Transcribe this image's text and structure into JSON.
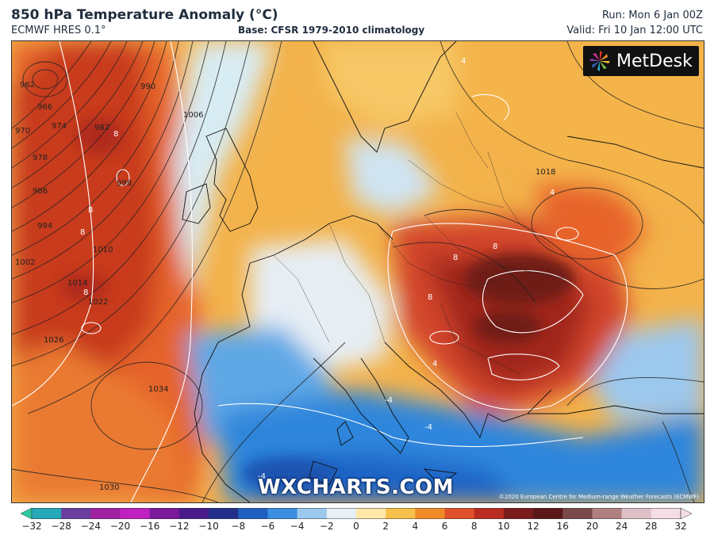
{
  "header": {
    "title": "850 hPa Temperature Anomaly (°C)",
    "model": "ECMWF HRES 0.1°",
    "base": "Base: CFSR 1979-2010 climatology",
    "run": "Run: Mon 6 Jan 00Z",
    "valid": "Valid: Fri 10 Jan 12:00 UTC"
  },
  "logo": {
    "text": "MetDesk"
  },
  "watermark": "WXCHARTS.COM",
  "copyright": "©2020 European Centre for Medium-range Weather Forecasts (ECMWF)",
  "colorbar": {
    "ticks": [
      "-32",
      "-28",
      "-24",
      "-20",
      "-16",
      "-12",
      "-10",
      "-8",
      "-6",
      "-4",
      "-2",
      "0",
      "2",
      "4",
      "6",
      "8",
      "10",
      "12",
      "16",
      "20",
      "24",
      "28",
      "32"
    ],
    "colors": [
      "#2ec8a0",
      "#25a8b8",
      "#6a3fa0",
      "#a020a0",
      "#c020c0",
      "#7a1a9a",
      "#4a1a8a",
      "#22308a",
      "#1f5fc0",
      "#3b8fe0",
      "#9cc8ee",
      "#e8f0f6",
      "#fde8a8",
      "#f7c04a",
      "#f08a28",
      "#e0502a",
      "#b82c22",
      "#7a1c1c",
      "#5a1818",
      "#7a4a4a",
      "#b08080",
      "#e0c0c8",
      "#f4dde6"
    ]
  },
  "pressure_labels": [
    {
      "text": "962"
    },
    {
      "text": "966"
    },
    {
      "text": "970"
    },
    {
      "text": "974"
    },
    {
      "text": "978"
    },
    {
      "text": "982"
    },
    {
      "text": "986"
    },
    {
      "text": "990"
    },
    {
      "text": "994"
    },
    {
      "text": "998"
    },
    {
      "text": "1002"
    },
    {
      "text": "1006"
    },
    {
      "text": "1010"
    },
    {
      "text": "1014"
    },
    {
      "text": "1018"
    },
    {
      "text": "1022"
    },
    {
      "text": "1026"
    },
    {
      "text": "1030"
    },
    {
      "text": "1034"
    }
  ],
  "anomaly_labels": [
    "8",
    "8",
    "8",
    "8",
    "8",
    "8",
    "4",
    "4",
    "-4",
    "-4",
    "-4",
    "4",
    "8"
  ]
}
